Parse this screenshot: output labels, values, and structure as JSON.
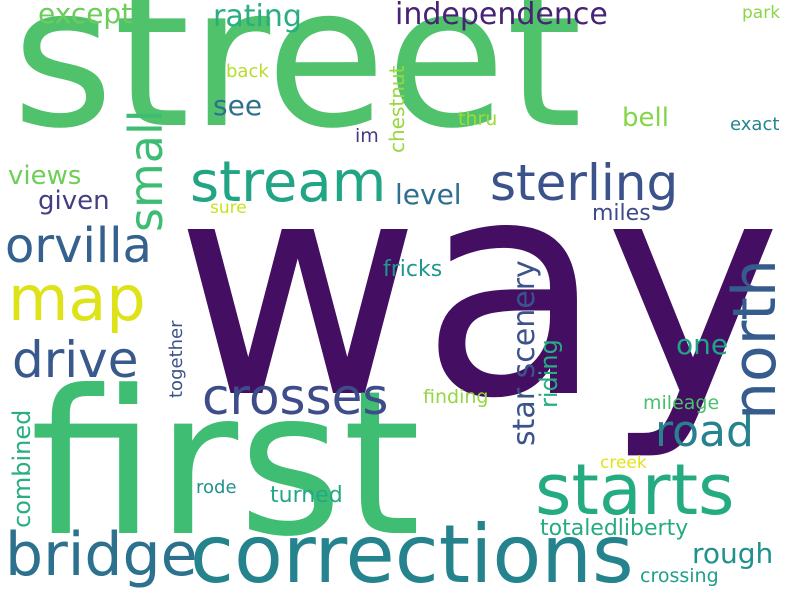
{
  "words": {
    "street": "street",
    "way": "way",
    "first": "first",
    "corrections": "corrections",
    "bridge": "bridge",
    "starts": "starts",
    "north": "north",
    "stream": "stream",
    "sterling": "sterling",
    "map": "map",
    "orvilla": "orvilla",
    "drive": "drive",
    "crosses": "crosses",
    "small": "small",
    "road": "road",
    "independence": "independence",
    "rating": "rating",
    "except": "except",
    "see": "see",
    "level": "level",
    "one": "one",
    "star_scenery": "star scenery",
    "riding": "riding",
    "bell": "bell",
    "views": "views",
    "given": "given",
    "fricks": "fricks",
    "miles": "miles",
    "rough": "rough",
    "turned": "turned",
    "totaledliberty": "totaledliberty",
    "mileage": "mileage",
    "crossing": "crossing",
    "thru": "thru",
    "im": "im",
    "exact": "exact",
    "park": "park",
    "back": "back",
    "sure": "sure",
    "finding": "finding",
    "creek": "creek",
    "rode": "rode",
    "chestnut": "chestnut",
    "together": "together",
    "combined": "combined"
  }
}
